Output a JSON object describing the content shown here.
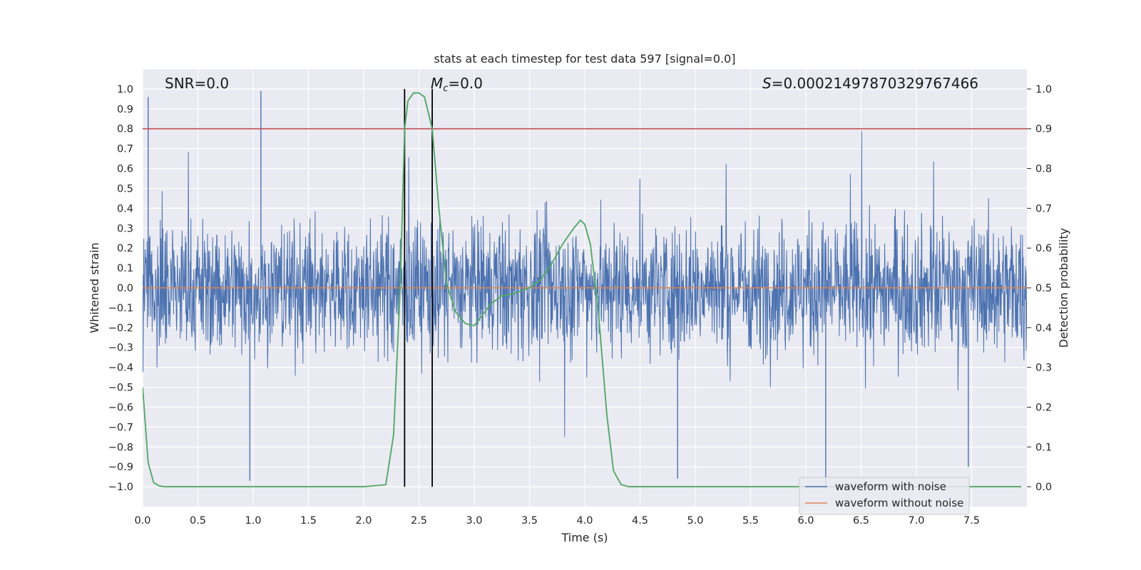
{
  "chart_data": {
    "type": "line",
    "title": "stats at each timestep for test data 597 [signal=0.0]",
    "xlabel": "Time (s)",
    "ylabel": "Whitened strain",
    "y2label": "Detection probability",
    "xlim": [
      0.0,
      8.0
    ],
    "ylim": [
      -1.1,
      1.1
    ],
    "y2lim": [
      -0.05,
      1.05
    ],
    "x_ticks": [
      "0.0",
      "0.5",
      "1.0",
      "1.5",
      "2.0",
      "2.5",
      "3.0",
      "3.5",
      "4.0",
      "4.5",
      "5.0",
      "5.5",
      "6.0",
      "6.5",
      "7.0",
      "7.5"
    ],
    "y_ticks": [
      "1.0",
      "0.9",
      "0.8",
      "0.7",
      "0.6",
      "0.5",
      "0.4",
      "0.3",
      "0.2",
      "0.1",
      "0.0",
      "−0.1",
      "−0.2",
      "−0.3",
      "−0.4",
      "−0.5",
      "−0.6",
      "−0.7",
      "−0.8",
      "−0.9",
      "−1.0"
    ],
    "y2_ticks": [
      "1.0",
      "0.9",
      "0.8",
      "0.7",
      "0.6",
      "0.5",
      "0.4",
      "0.3",
      "0.2",
      "0.1",
      "0.0"
    ],
    "annotations": {
      "snr": "SNR=0.0",
      "mc_symbol": "M",
      "mc_sub": "c",
      "mc_value": "=0.0",
      "s_symbol": "S",
      "s_value": "=0.00021497870329767466"
    },
    "threshold_y2": 0.9,
    "vertical_lines_x": [
      2.37,
      2.62
    ],
    "series": [
      {
        "name": "waveform with noise",
        "color": "#4c72b0",
        "description": "dense noise trace, typical amplitude about ±0.3, peaks to about ±0.95",
        "amplitude_typical": 0.3,
        "amplitude_peak": 0.99,
        "spikes": [
          [
            0.05,
            0.96
          ],
          [
            1.07,
            0.99
          ],
          [
            0.97,
            -0.97
          ],
          [
            4.84,
            -0.96
          ],
          [
            6.18,
            -1.0
          ],
          [
            7.47,
            -0.9
          ]
        ]
      },
      {
        "name": "waveform without noise",
        "color": "#dd8452",
        "description": "flat at 0.0"
      },
      {
        "name": "detection probability",
        "color": "#55a868",
        "axis": "right",
        "x": [
          0.0,
          0.05,
          0.1,
          0.15,
          0.2,
          0.3,
          0.5,
          1.0,
          1.5,
          2.0,
          2.2,
          2.27,
          2.33,
          2.37,
          2.4,
          2.45,
          2.5,
          2.55,
          2.62,
          2.68,
          2.75,
          2.83,
          2.92,
          3.0,
          3.07,
          3.15,
          3.25,
          3.35,
          3.5,
          3.6,
          3.7,
          3.8,
          3.9,
          3.96,
          4.0,
          4.05,
          4.12,
          4.2,
          4.26,
          4.33,
          4.4,
          5.0,
          6.0,
          7.0,
          7.95
        ],
        "y": [
          0.25,
          0.06,
          0.01,
          0.002,
          0.0,
          0.0,
          0.0,
          0.0,
          0.0,
          0.0,
          0.005,
          0.13,
          0.5,
          0.9,
          0.97,
          0.99,
          0.99,
          0.98,
          0.9,
          0.7,
          0.51,
          0.44,
          0.41,
          0.405,
          0.43,
          0.46,
          0.48,
          0.485,
          0.5,
          0.52,
          0.56,
          0.61,
          0.65,
          0.67,
          0.66,
          0.61,
          0.45,
          0.18,
          0.04,
          0.005,
          0.0,
          0.0,
          0.0,
          0.0,
          0.0
        ]
      }
    ],
    "legend": {
      "position": "lower-right",
      "entries": [
        {
          "label": "waveform with noise",
          "color": "#4c72b0"
        },
        {
          "label": "waveform without noise",
          "color": "#dd8452"
        }
      ]
    },
    "colors": {
      "plot_bg": "#eaeaf2",
      "grid": "#ffffff",
      "threshold": "#c44e52",
      "vlines": "#000000"
    }
  }
}
